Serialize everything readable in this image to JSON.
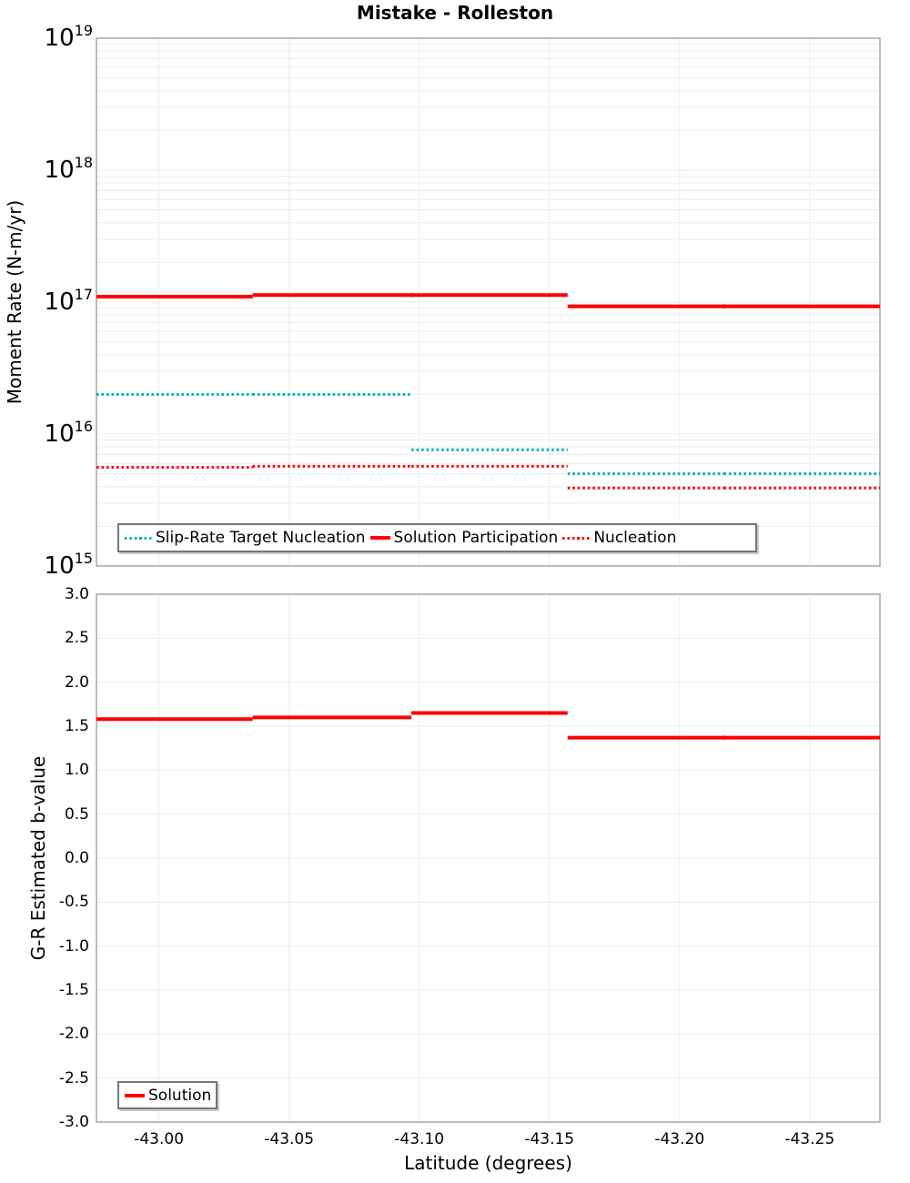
{
  "figure_title": "Mistake - Rolleston",
  "colors": {
    "solution_red": "#ff0000",
    "target_teal": "#00b2b2",
    "gridline": "#ebebeb",
    "spine": "#a6a6a6",
    "legend_border": "#767676",
    "text": "#000000",
    "background": "#ffffff"
  },
  "chart_data": [
    {
      "type": "line",
      "panel": "top",
      "title": "Mistake - Rolleston",
      "ylabel": "Moment Rate (N-m/yr)",
      "yscale": "log",
      "ylim": [
        1000000000000000.0,
        1e+19
      ],
      "ytick_exponents": [
        19,
        18,
        17,
        16,
        15
      ],
      "x_reversed": true,
      "xlim": [
        -42.976,
        -43.277
      ],
      "xticks": [
        -43.0,
        -43.05,
        -43.1,
        -43.15,
        -43.2,
        -43.25
      ],
      "grid": true,
      "legend_position": "bottom-left",
      "x_edges": [
        -42.976,
        -43.036,
        -43.097,
        -43.157,
        -43.217,
        -43.277
      ],
      "series": [
        {
          "name": "Slip-Rate Target Nucleation",
          "color": "#00b2b2",
          "line_style": "dotted",
          "values": [
            2e+16,
            2e+16,
            7600000000000000.0,
            5000000000000000.0,
            5000000000000000.0
          ]
        },
        {
          "name": "Solution Participation",
          "color": "#ff0000",
          "line_style": "solid",
          "values": [
            1.1e+17,
            1.13e+17,
            1.13e+17,
            9.3e+16,
            9.3e+16
          ]
        },
        {
          "name": "Nucleation",
          "color": "#ff0000",
          "line_style": "dotted",
          "values": [
            5600000000000000.0,
            5700000000000000.0,
            5700000000000000.0,
            3900000000000000.0,
            3900000000000000.0
          ]
        }
      ]
    },
    {
      "type": "line",
      "panel": "bottom",
      "xlabel": "Latitude (degrees)",
      "ylabel": "G-R Estimated b-value",
      "ylim": [
        -3.0,
        3.0
      ],
      "ytick_step": 0.5,
      "ytick_labels": [
        "3.0",
        "2.5",
        "2.0",
        "1.5",
        "1.0",
        "0.5",
        "0.0",
        "-0.5",
        "-1.0",
        "-1.5",
        "-2.0",
        "-2.5",
        "-3.0"
      ],
      "x_reversed": true,
      "xlim": [
        -42.976,
        -43.277
      ],
      "xticks": [
        -43.0,
        -43.05,
        -43.1,
        -43.15,
        -43.2,
        -43.25
      ],
      "xtick_labels": [
        "-43.00",
        "-43.05",
        "-43.10",
        "-43.15",
        "-43.20",
        "-43.25"
      ],
      "grid": true,
      "legend_position": "bottom-left",
      "x_edges": [
        -42.976,
        -43.036,
        -43.097,
        -43.157,
        -43.217,
        -43.277
      ],
      "series": [
        {
          "name": "Solution",
          "color": "#ff0000",
          "line_style": "solid",
          "values": [
            1.58,
            1.6,
            1.65,
            1.37,
            1.37
          ]
        }
      ]
    }
  ]
}
